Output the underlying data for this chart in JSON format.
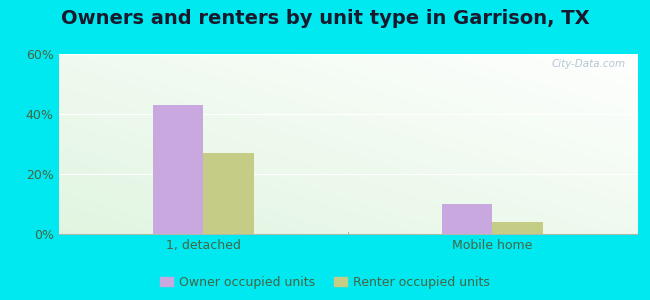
{
  "title": "Owners and renters by unit type in Garrison, TX",
  "categories": [
    "1, detached",
    "Mobile home"
  ],
  "owner_values": [
    43.0,
    10.0
  ],
  "renter_values": [
    27.0,
    4.0
  ],
  "owner_color": "#c9a8df",
  "renter_color": "#c5cc85",
  "background_outer": "#00e8f0",
  "ylim": [
    0,
    60
  ],
  "yticks": [
    0,
    20,
    40,
    60
  ],
  "ytick_labels": [
    "0%",
    "20%",
    "40%",
    "60%"
  ],
  "bar_width": 0.35,
  "legend_labels": [
    "Owner occupied units",
    "Renter occupied units"
  ],
  "watermark": "City-Data.com",
  "title_fontsize": 14,
  "tick_fontsize": 9,
  "legend_fontsize": 9
}
